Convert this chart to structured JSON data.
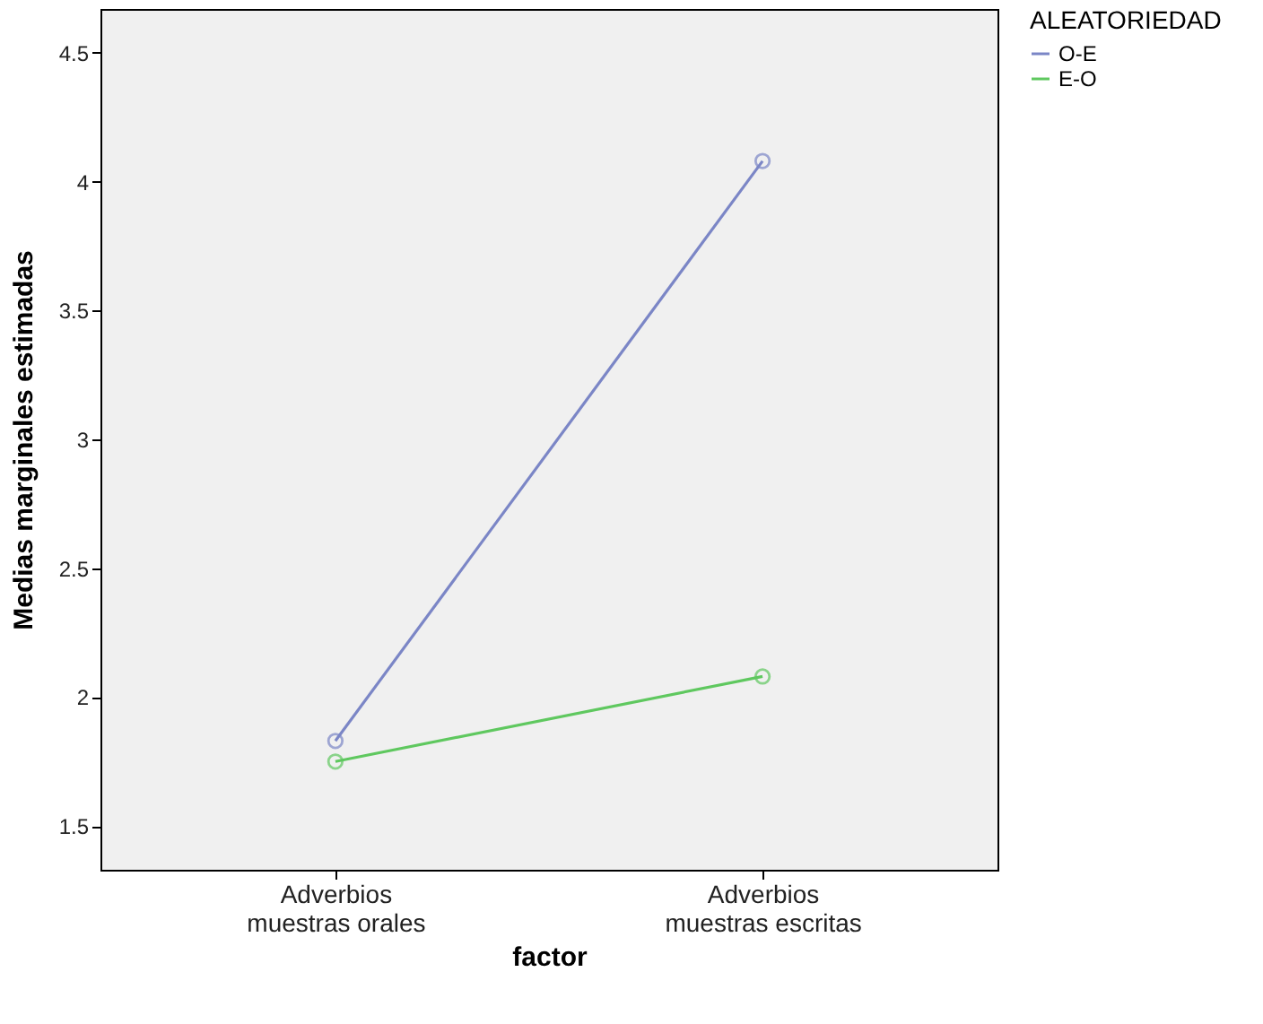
{
  "chart_data": {
    "type": "line",
    "xlabel": "factor",
    "ylabel": "Medias marginales estimadas",
    "legend_title": "ALEATORIEDAD",
    "categories": [
      "Adverbios muestras orales",
      "Adverbios muestras escritas"
    ],
    "series": [
      {
        "name": "O-E",
        "color": "#7b86c6",
        "values": [
          1.83,
          4.08
        ]
      },
      {
        "name": "E-O",
        "color": "#5fc85f",
        "values": [
          1.75,
          2.08
        ]
      }
    ],
    "ylim": [
      1.33,
      4.67
    ],
    "yticks": [
      1.5,
      2,
      2.5,
      3,
      3.5,
      4,
      4.5
    ],
    "marker": "circle",
    "legend": "top right",
    "grid": false
  }
}
